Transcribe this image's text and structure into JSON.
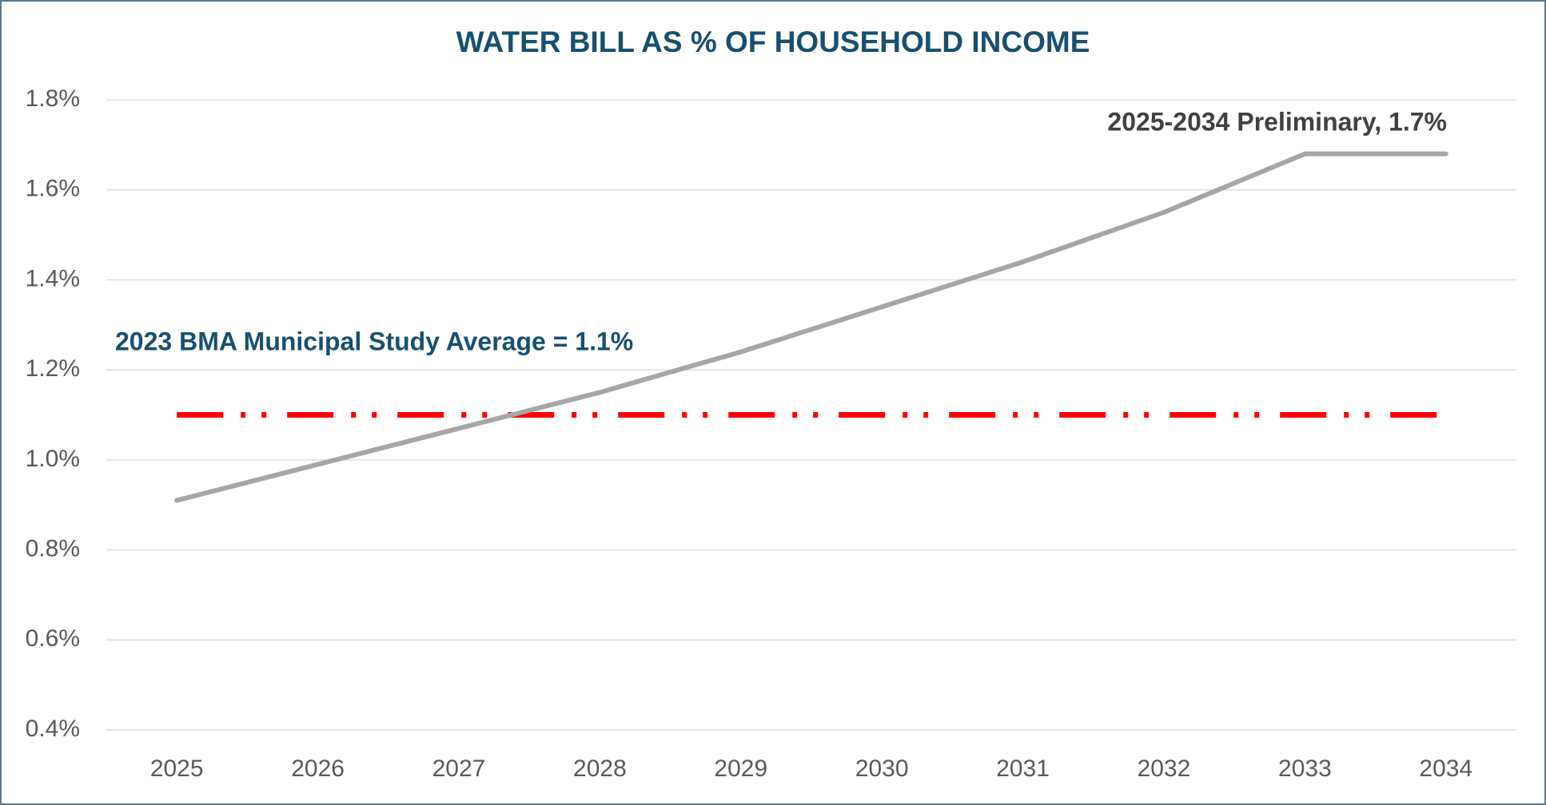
{
  "chart_data": {
    "type": "line",
    "title": "WATER BILL AS % OF HOUSEHOLD INCOME",
    "categories": [
      "2025",
      "2026",
      "2027",
      "2028",
      "2029",
      "2030",
      "2031",
      "2032",
      "2033",
      "2034"
    ],
    "series": [
      {
        "color": "#a6a6a6",
        "values": [
          0.91,
          0.99,
          1.07,
          1.15,
          1.24,
          1.34,
          1.44,
          1.55,
          1.68,
          1.68
        ]
      }
    ],
    "annotations": [
      "2025-2034 Preliminary, 1.7%"
    ],
    "reference_line": {
      "value": 1.1,
      "label": "2023 BMA Municipal Study Average = 1.1%",
      "color": "#ff0000"
    },
    "ylim": [
      0.4,
      1.8
    ],
    "yticks": [
      {
        "value": 0.4,
        "label": "0.4%"
      },
      {
        "value": 0.6,
        "label": "0.6%"
      },
      {
        "value": 0.8,
        "label": "0.8%"
      },
      {
        "value": 1.0,
        "label": "1.0%"
      },
      {
        "value": 1.2,
        "label": "1.2%"
      },
      {
        "value": 1.4,
        "label": "1.4%"
      },
      {
        "value": 1.6,
        "label": "1.6%"
      },
      {
        "value": 1.8,
        "label": "1.8%"
      }
    ],
    "grid": true
  }
}
